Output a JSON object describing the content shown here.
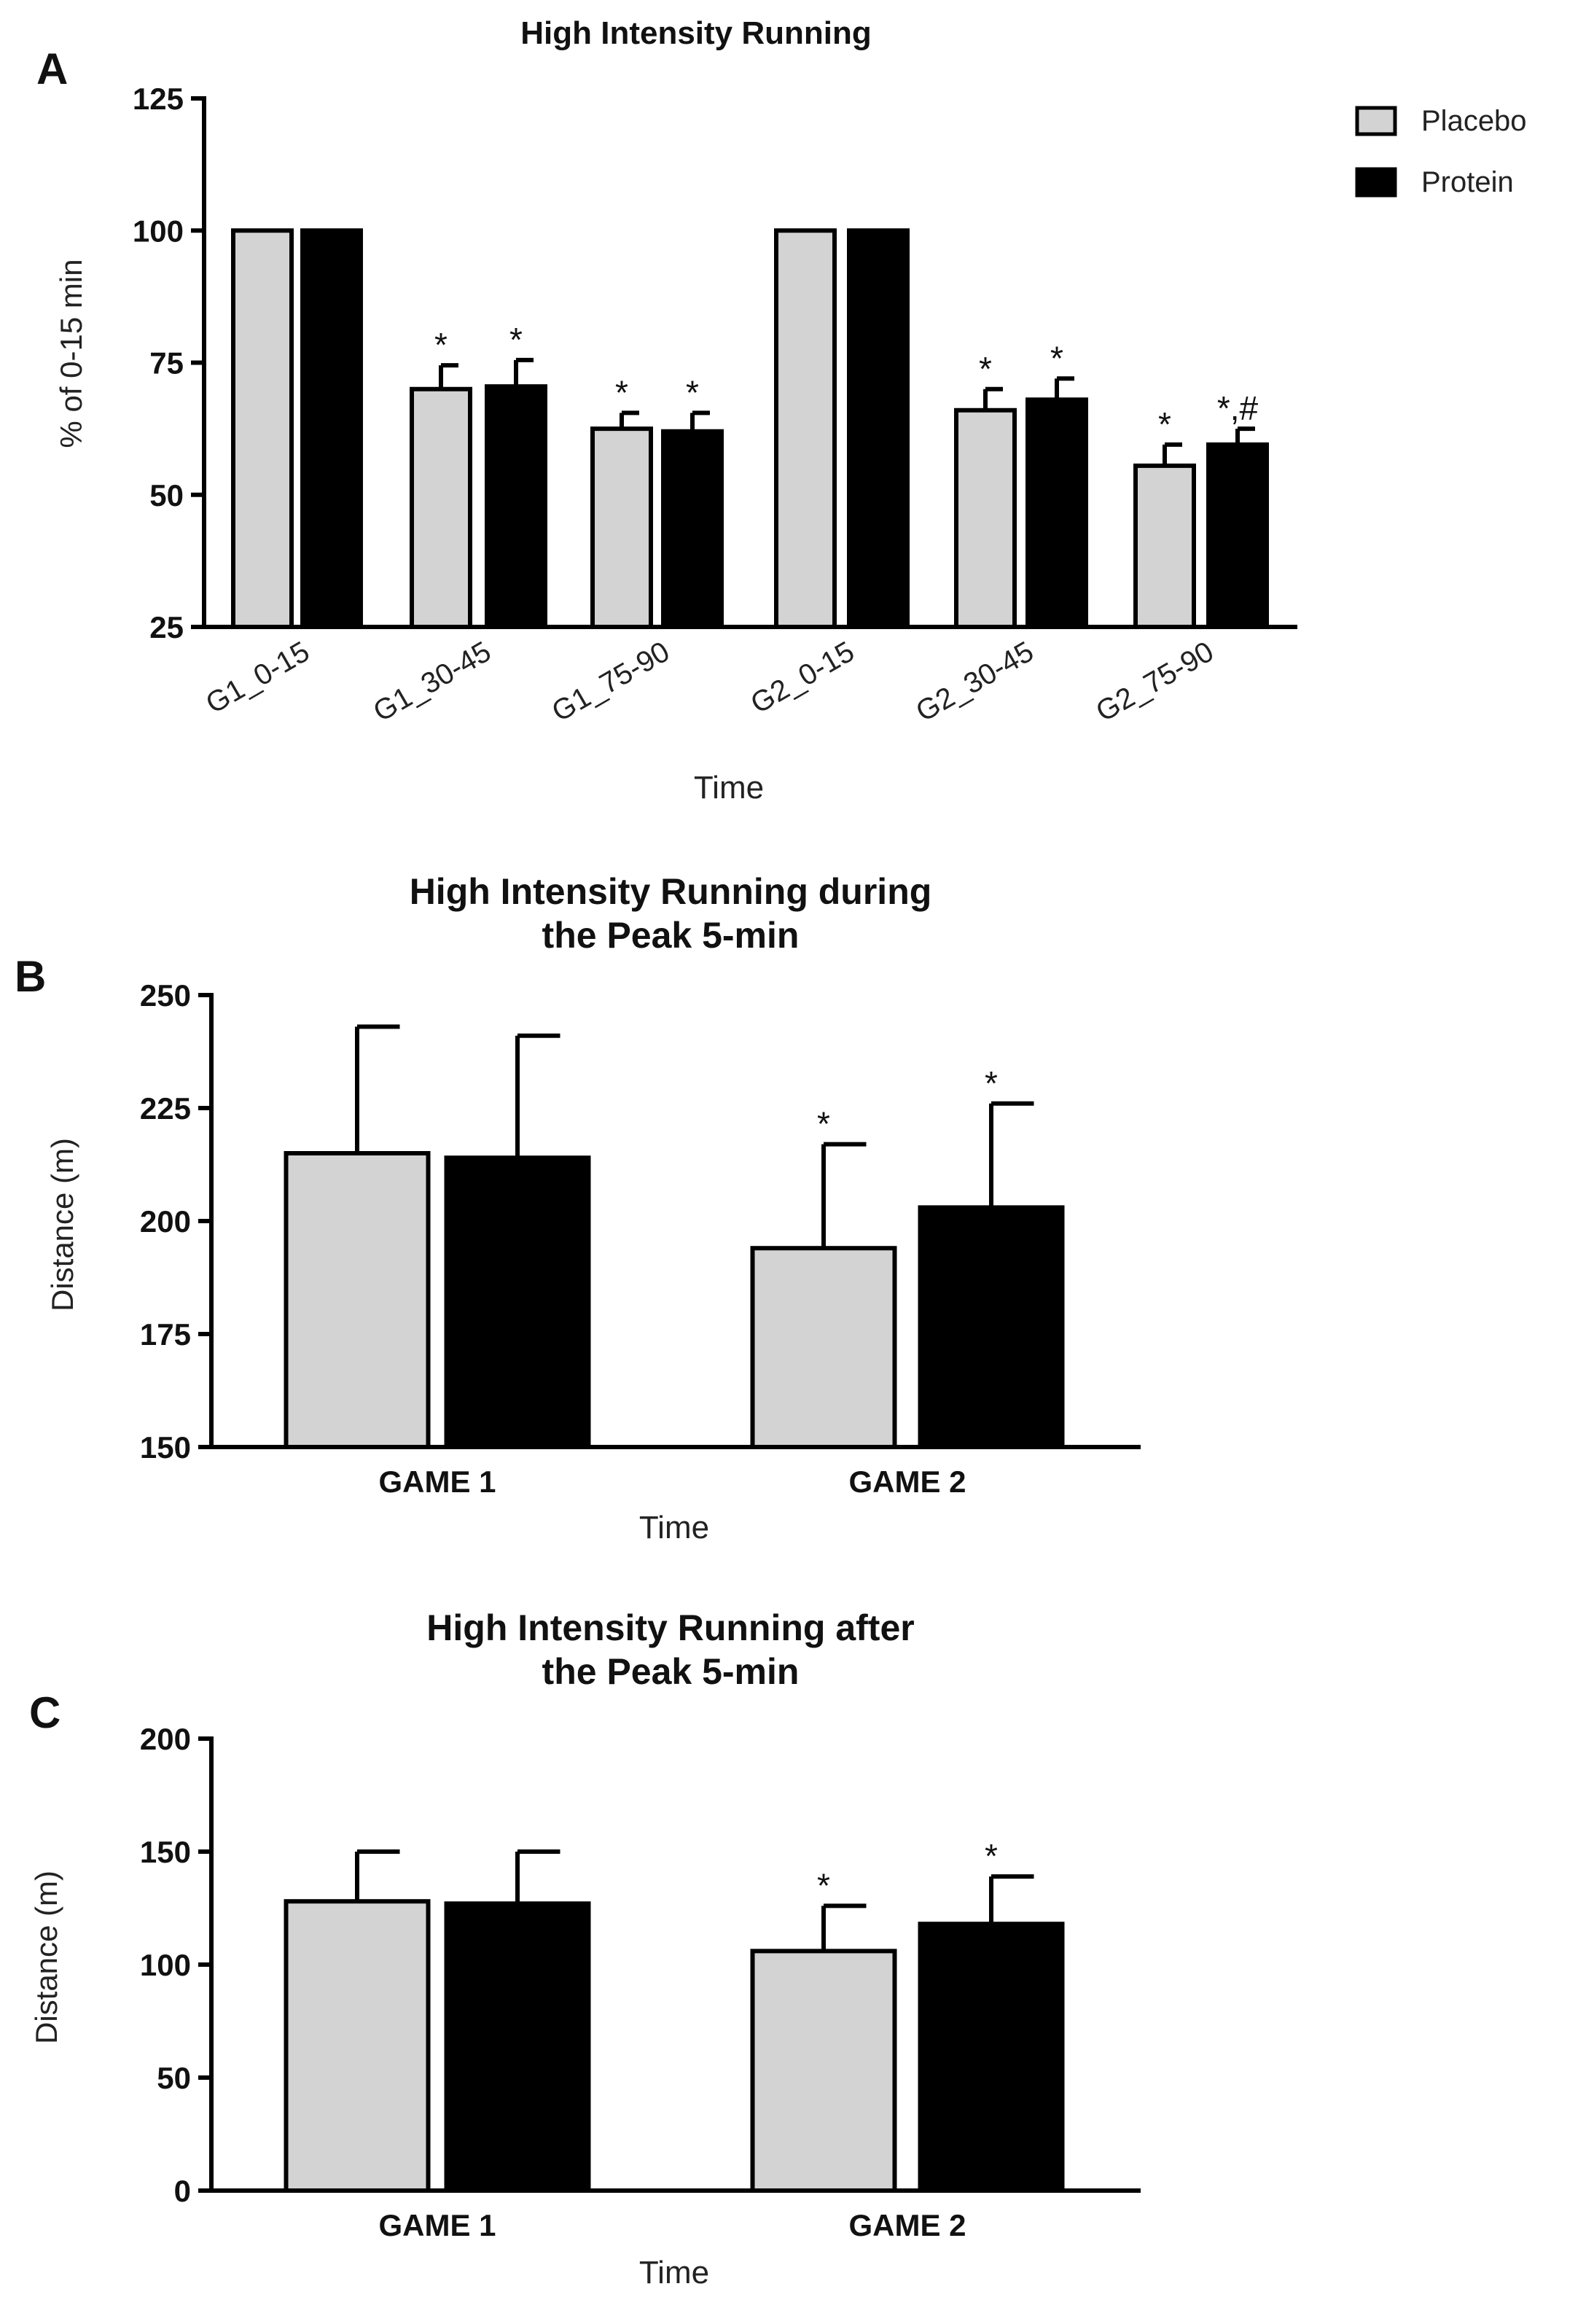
{
  "legend": [
    {
      "name": "Placebo",
      "color": "#d3d3d3"
    },
    {
      "name": "Protein",
      "color": "#000000"
    }
  ],
  "chart_data": [
    {
      "id": "A",
      "type": "bar",
      "panel_label": "A",
      "title": [
        "High Intensity Running"
      ],
      "ylabel": "% of 0-15 min",
      "xlabel": "Time",
      "ylim": [
        25,
        125
      ],
      "yticks": [
        25,
        50,
        75,
        100,
        125
      ],
      "categories": [
        "G1_0-15",
        "G1_30-45",
        "G1_75-90",
        "G2_0-15",
        "G2_30-45",
        "G2_75-90"
      ],
      "series": [
        {
          "name": "Placebo",
          "values": [
            100,
            70,
            62.5,
            100,
            66,
            55.5
          ],
          "errors": [
            0,
            4.5,
            3,
            0,
            4,
            4
          ],
          "annotations": [
            "",
            "*",
            "*",
            "",
            "*",
            "*"
          ]
        },
        {
          "name": "Protein",
          "values": [
            100,
            70.5,
            62,
            100,
            68,
            59.5
          ],
          "errors": [
            0,
            5,
            3.5,
            0,
            4,
            3
          ],
          "annotations": [
            "",
            "*",
            "*",
            "",
            "*",
            "*,#"
          ]
        }
      ]
    },
    {
      "id": "B",
      "type": "bar",
      "panel_label": "B",
      "title": [
        "High Intensity Running during",
        "the Peak 5-min"
      ],
      "ylabel": "Distance (m)",
      "xlabel": "Time",
      "ylim": [
        150,
        250
      ],
      "yticks": [
        150,
        175,
        200,
        225,
        250
      ],
      "categories": [
        "GAME 1",
        "GAME 2"
      ],
      "series": [
        {
          "name": "Placebo",
          "values": [
            215,
            194
          ],
          "errors": [
            28,
            23
          ],
          "annotations": [
            "",
            "*"
          ]
        },
        {
          "name": "Protein",
          "values": [
            214,
            203
          ],
          "errors": [
            27,
            23
          ],
          "annotations": [
            "",
            "*"
          ]
        }
      ]
    },
    {
      "id": "C",
      "type": "bar",
      "panel_label": "C",
      "title": [
        "High Intensity Running after",
        "the Peak 5-min"
      ],
      "ylabel": "Distance (m)",
      "xlabel": "Time",
      "ylim": [
        0,
        200
      ],
      "yticks": [
        0,
        50,
        100,
        150,
        200
      ],
      "categories": [
        "GAME 1",
        "GAME 2"
      ],
      "series": [
        {
          "name": "Placebo",
          "values": [
            128,
            106
          ],
          "errors": [
            22,
            20
          ],
          "annotations": [
            "",
            "*"
          ]
        },
        {
          "name": "Protein",
          "values": [
            127,
            118
          ],
          "errors": [
            23,
            21
          ],
          "annotations": [
            "",
            "*"
          ]
        }
      ]
    }
  ]
}
